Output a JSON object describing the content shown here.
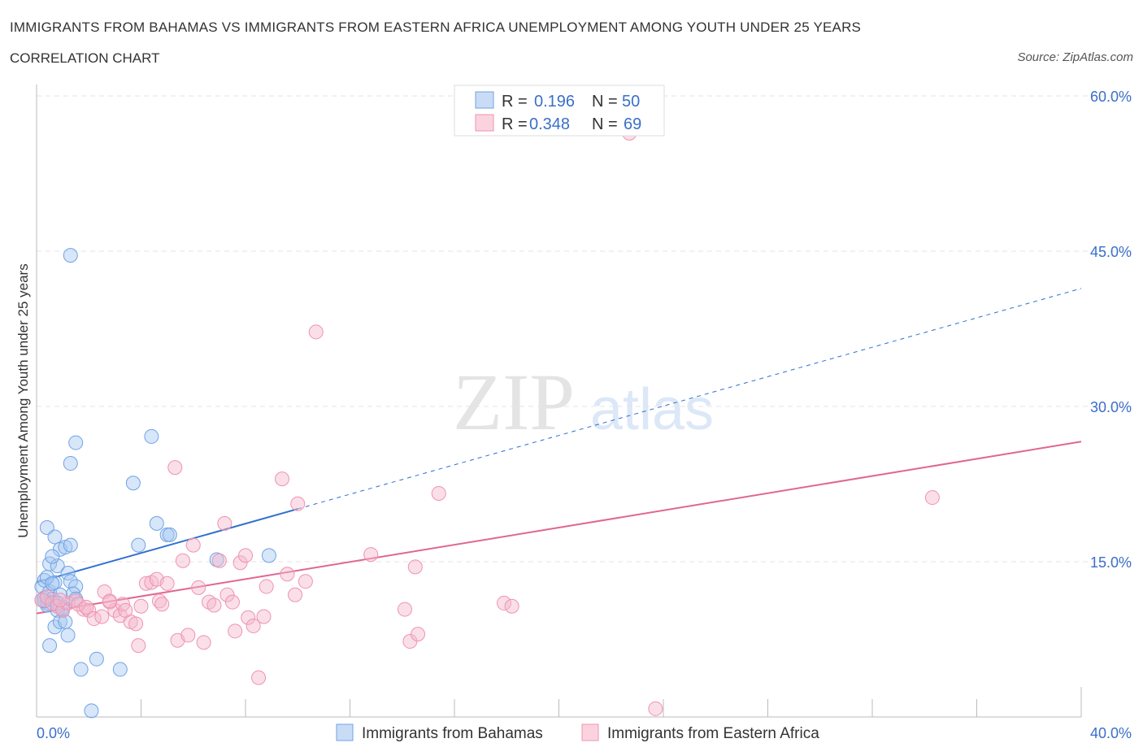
{
  "header": {
    "title": "IMMIGRANTS FROM BAHAMAS VS IMMIGRANTS FROM EASTERN AFRICA UNEMPLOYMENT AMONG YOUTH UNDER 25 YEARS",
    "subtitle": "CORRELATION CHART",
    "source": "Source: ZipAtlas.com"
  },
  "watermark": {
    "zip": "ZIP",
    "atlas": "atlas"
  },
  "legend": {
    "r_label": "R =",
    "n_label": "N =",
    "rows": [
      {
        "r": "0.196",
        "n": "50",
        "color": "#a7c8f2"
      },
      {
        "r": "0.348",
        "n": "69",
        "color": "#f5b8cb"
      }
    ]
  },
  "chart_data": {
    "type": "scatter",
    "title": "IMMIGRANTS FROM BAHAMAS VS IMMIGRANTS FROM EASTERN AFRICA UNEMPLOYMENT AMONG YOUTH UNDER 25 YEARS",
    "xlabel": "",
    "ylabel": "Unemployment Among Youth under 25 years",
    "xlim": [
      0,
      40
    ],
    "ylim": [
      0,
      60
    ],
    "x_tick_labels": [
      "0.0%",
      "40.0%"
    ],
    "y_ticks": [
      15,
      30,
      45,
      60
    ],
    "y_tick_labels": [
      "15.0%",
      "30.0%",
      "45.0%",
      "60.0%"
    ],
    "series": [
      {
        "name": "Immigrants from Bahamas",
        "color": "#6fa3e6",
        "fill": "#a7c8f2",
        "line_color": "#2f6fcf",
        "trend": {
          "x0": 0,
          "y0": 13.0,
          "x1": 10,
          "y1": 20.1,
          "x_end": 40,
          "y_end": 41.4
        },
        "points": [
          [
            0.2,
            12.6
          ],
          [
            0.3,
            11.5
          ],
          [
            0.4,
            11.0
          ],
          [
            0.3,
            13.2
          ],
          [
            0.5,
            12.1
          ],
          [
            0.6,
            11.4
          ],
          [
            0.4,
            10.8
          ],
          [
            0.7,
            13.0
          ],
          [
            0.5,
            14.8
          ],
          [
            0.8,
            14.6
          ],
          [
            0.4,
            18.3
          ],
          [
            0.7,
            17.4
          ],
          [
            0.9,
            16.2
          ],
          [
            1.1,
            16.4
          ],
          [
            1.2,
            13.9
          ],
          [
            1.3,
            13.1
          ],
          [
            1.5,
            12.6
          ],
          [
            1.4,
            11.9
          ],
          [
            0.9,
            11.8
          ],
          [
            1.0,
            10.6
          ],
          [
            0.8,
            10.3
          ],
          [
            0.7,
            8.7
          ],
          [
            0.9,
            9.2
          ],
          [
            1.1,
            9.2
          ],
          [
            1.2,
            7.9
          ],
          [
            0.5,
            6.9
          ],
          [
            1.3,
            16.6
          ],
          [
            1.3,
            44.6
          ],
          [
            1.3,
            24.5
          ],
          [
            1.5,
            26.5
          ],
          [
            1.7,
            4.6
          ],
          [
            2.3,
            5.6
          ],
          [
            3.2,
            4.6
          ],
          [
            2.1,
            0.6
          ],
          [
            3.7,
            22.6
          ],
          [
            3.9,
            16.6
          ],
          [
            4.4,
            27.1
          ],
          [
            4.6,
            18.7
          ],
          [
            5.0,
            17.6
          ],
          [
            5.1,
            17.6
          ],
          [
            6.9,
            15.2
          ],
          [
            8.9,
            15.6
          ],
          [
            0.3,
            11.2
          ],
          [
            0.6,
            15.5
          ],
          [
            0.2,
            11.3
          ],
          [
            1.0,
            10.4
          ],
          [
            0.8,
            11.0
          ],
          [
            0.4,
            13.5
          ],
          [
            0.6,
            12.9
          ],
          [
            1.5,
            11.4
          ]
        ]
      },
      {
        "name": "Immigrants from Eastern Africa",
        "color": "#ef93b0",
        "fill": "#f5b8cb",
        "line_color": "#e0678f",
        "trend": {
          "x0": 0,
          "y0": 10.0,
          "x1": 40,
          "y1": 26.6
        },
        "points": [
          [
            0.2,
            11.3
          ],
          [
            0.4,
            11.6
          ],
          [
            0.6,
            11.0
          ],
          [
            0.8,
            10.7
          ],
          [
            1.0,
            10.3
          ],
          [
            1.2,
            11.0
          ],
          [
            1.5,
            11.2
          ],
          [
            1.8,
            10.4
          ],
          [
            2.0,
            10.3
          ],
          [
            2.2,
            9.5
          ],
          [
            2.5,
            9.7
          ],
          [
            2.6,
            12.1
          ],
          [
            2.8,
            11.1
          ],
          [
            3.0,
            10.3
          ],
          [
            3.2,
            9.8
          ],
          [
            3.3,
            10.9
          ],
          [
            3.6,
            9.2
          ],
          [
            3.8,
            9.0
          ],
          [
            4.0,
            10.7
          ],
          [
            4.2,
            12.9
          ],
          [
            4.4,
            13.0
          ],
          [
            4.6,
            13.3
          ],
          [
            4.7,
            11.2
          ],
          [
            4.8,
            10.9
          ],
          [
            5.0,
            12.9
          ],
          [
            5.3,
            24.1
          ],
          [
            5.4,
            7.4
          ],
          [
            5.6,
            15.1
          ],
          [
            5.8,
            7.9
          ],
          [
            6.0,
            16.6
          ],
          [
            6.2,
            12.5
          ],
          [
            6.4,
            7.2
          ],
          [
            6.6,
            11.1
          ],
          [
            6.8,
            10.8
          ],
          [
            7.0,
            15.1
          ],
          [
            7.2,
            18.7
          ],
          [
            7.3,
            11.8
          ],
          [
            7.5,
            11.1
          ],
          [
            7.6,
            8.3
          ],
          [
            7.8,
            14.9
          ],
          [
            8.0,
            15.6
          ],
          [
            8.1,
            9.6
          ],
          [
            8.3,
            8.8
          ],
          [
            8.5,
            3.8
          ],
          [
            8.7,
            9.7
          ],
          [
            8.8,
            12.6
          ],
          [
            9.4,
            23.0
          ],
          [
            9.6,
            13.8
          ],
          [
            9.9,
            11.8
          ],
          [
            10.0,
            20.6
          ],
          [
            10.3,
            13.1
          ],
          [
            10.7,
            37.2
          ],
          [
            12.8,
            15.7
          ],
          [
            14.1,
            10.4
          ],
          [
            14.3,
            7.3
          ],
          [
            14.5,
            14.5
          ],
          [
            14.6,
            8.0
          ],
          [
            15.4,
            21.6
          ],
          [
            17.9,
            11.0
          ],
          [
            18.2,
            10.7
          ],
          [
            22.7,
            56.4
          ],
          [
            23.7,
            0.8
          ],
          [
            34.3,
            21.2
          ],
          [
            3.9,
            6.9
          ],
          [
            1.6,
            10.9
          ],
          [
            2.8,
            11.2
          ],
          [
            0.9,
            11.3
          ],
          [
            1.9,
            10.6
          ],
          [
            3.4,
            10.3
          ]
        ]
      }
    ]
  },
  "bottom_legend": {
    "items": [
      {
        "label": "Immigrants from Bahamas",
        "color": "#a7c8f2",
        "stroke": "#6fa3e6"
      },
      {
        "label": "Immigrants from Eastern Africa",
        "color": "#f5b8cb",
        "stroke": "#ef93b0"
      }
    ]
  }
}
